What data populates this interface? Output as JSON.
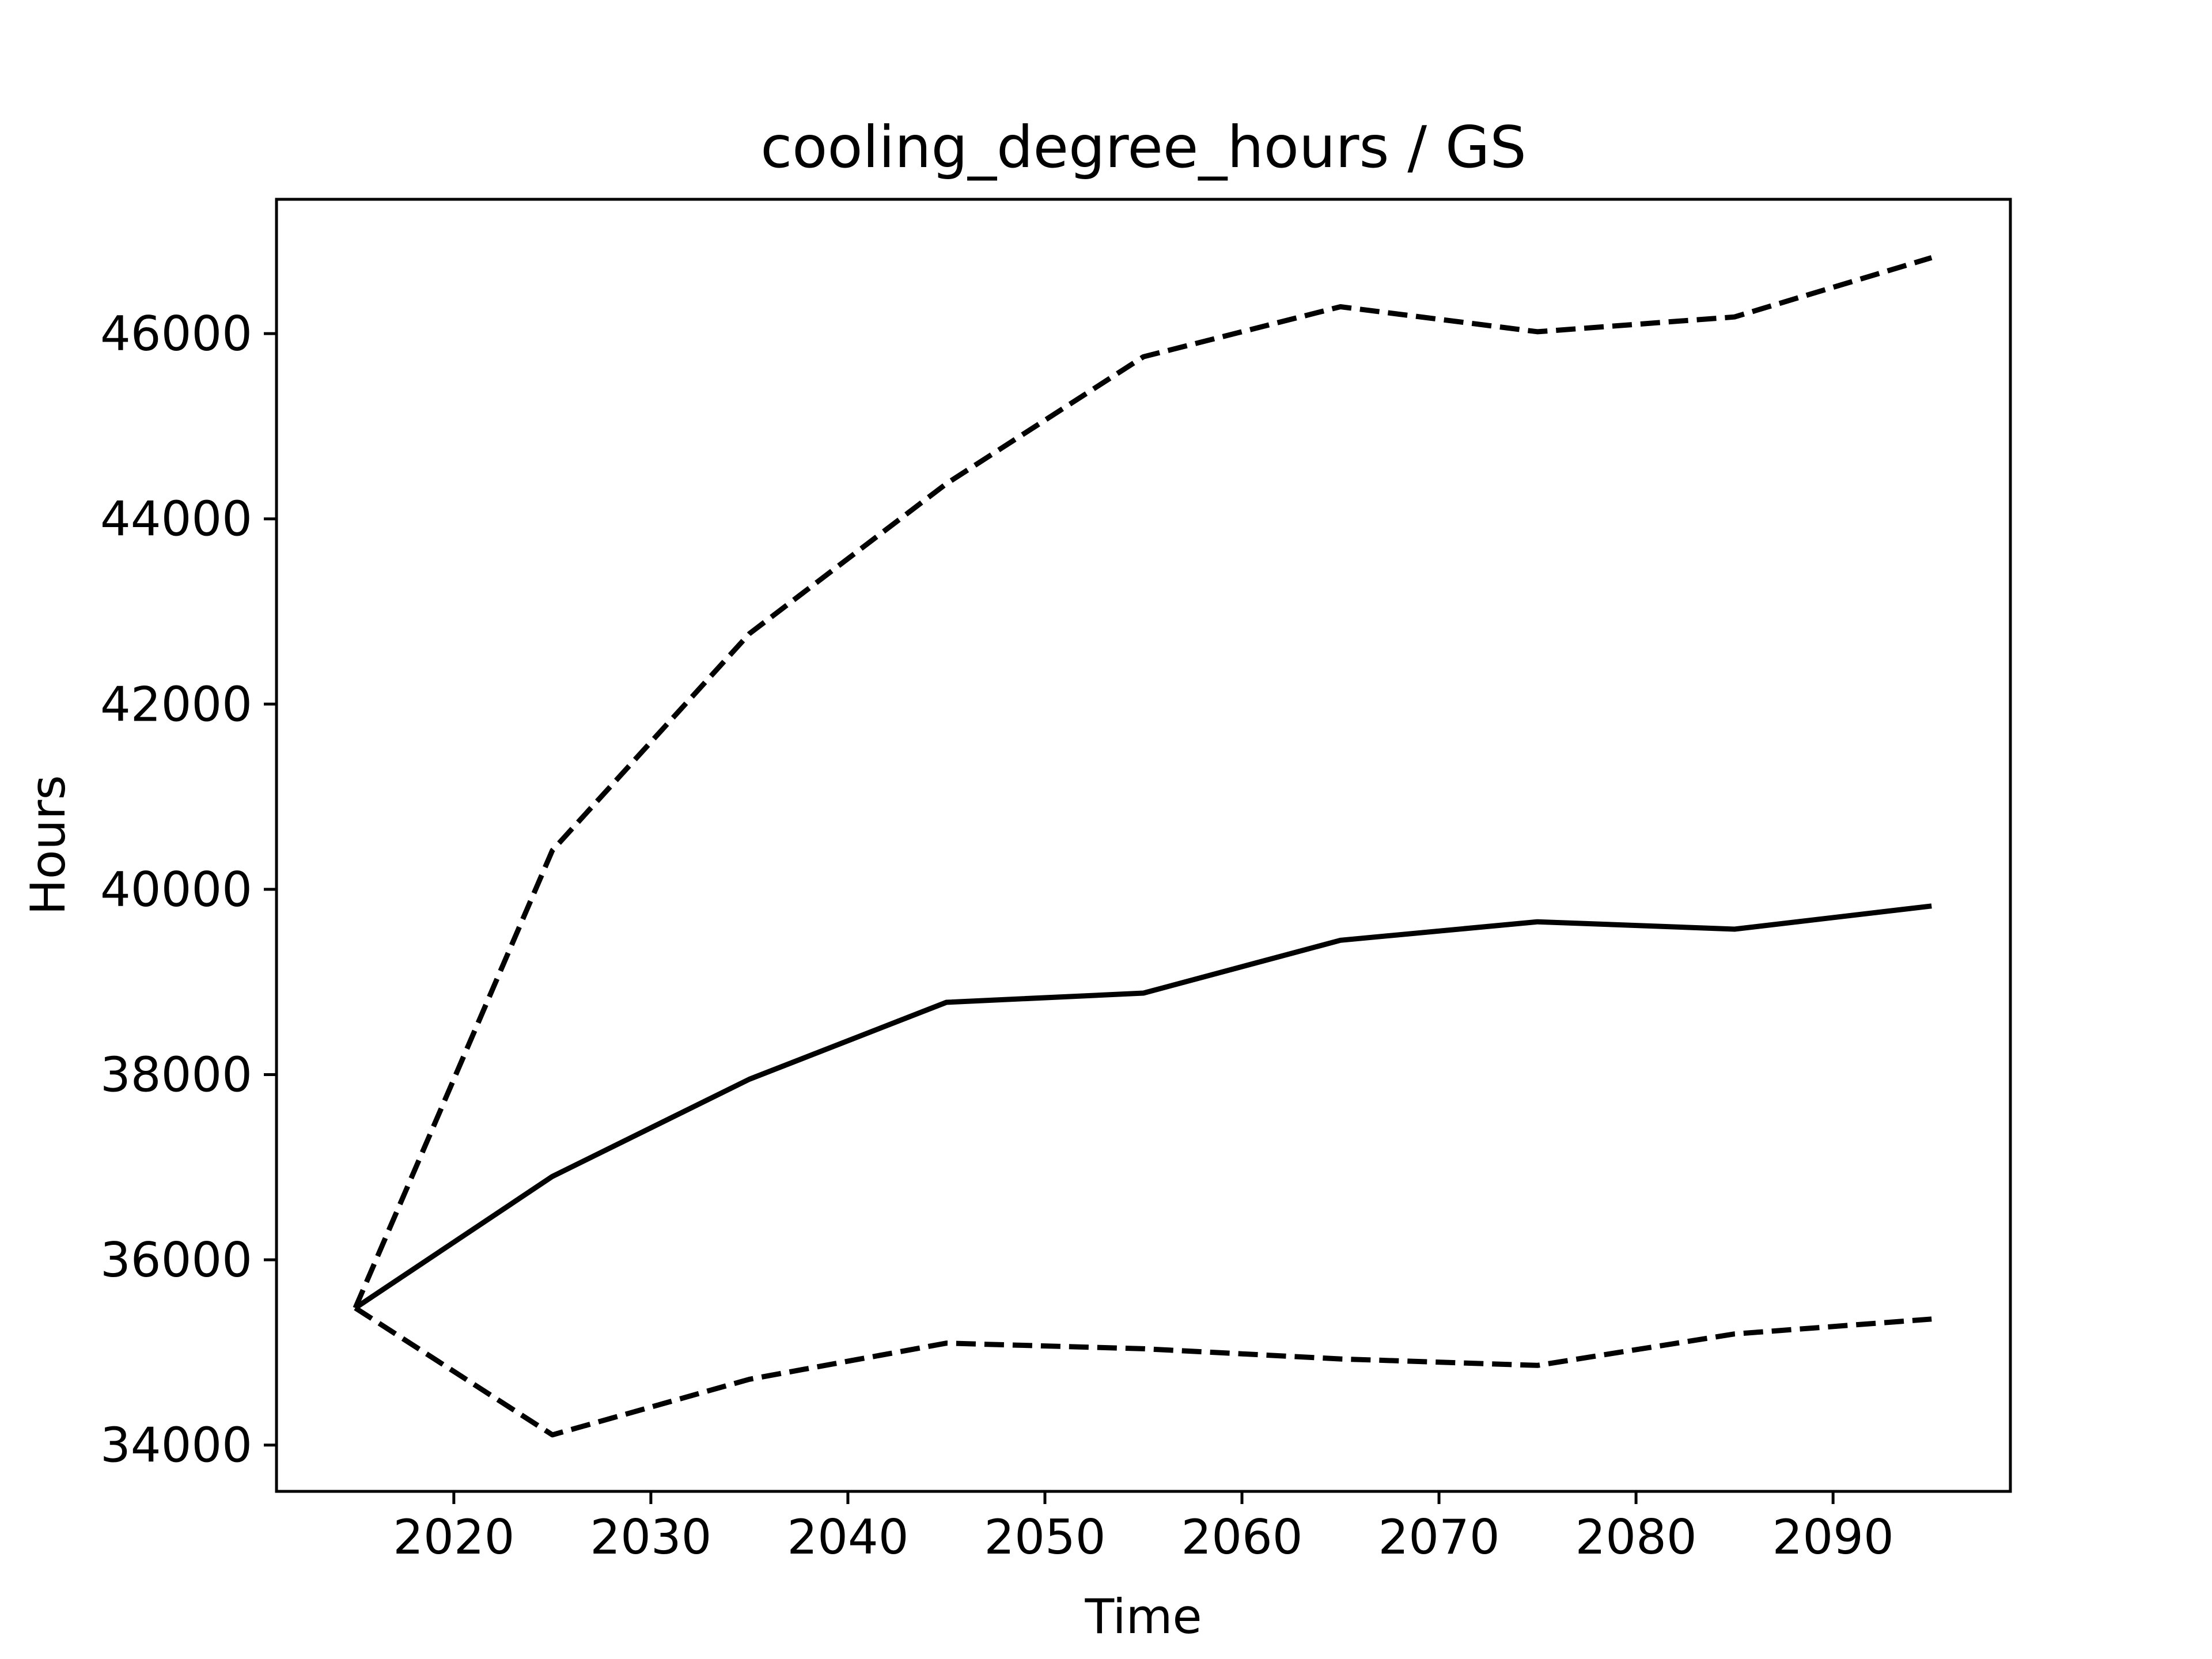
{
  "chart_data": {
    "type": "line",
    "title": "cooling_degree_hours / GS",
    "xlabel": "Time",
    "ylabel": "Hours",
    "xlim": [
      2011,
      2099
    ],
    "ylim": [
      33500,
      47450
    ],
    "xticks": [
      2020,
      2030,
      2040,
      2050,
      2060,
      2070,
      2080,
      2090
    ],
    "yticks": [
      34000,
      36000,
      38000,
      40000,
      42000,
      44000,
      46000
    ],
    "grid": false,
    "legend": "none",
    "x": [
      2015,
      2025,
      2035,
      2045,
      2055,
      2065,
      2075,
      2085,
      2095
    ],
    "series": [
      {
        "style": "solid",
        "color": "#000000",
        "values": [
          35480,
          36900,
          37950,
          38780,
          38880,
          39450,
          39650,
          39570,
          39820
        ]
      },
      {
        "style": "dashed",
        "color": "#000000",
        "values": [
          35480,
          40420,
          42760,
          44380,
          45750,
          46290,
          46020,
          46180,
          46820
        ]
      },
      {
        "style": "dashed",
        "color": "#000000",
        "values": [
          35480,
          34110,
          34710,
          35100,
          35040,
          34930,
          34860,
          35200,
          35360
        ]
      }
    ]
  }
}
